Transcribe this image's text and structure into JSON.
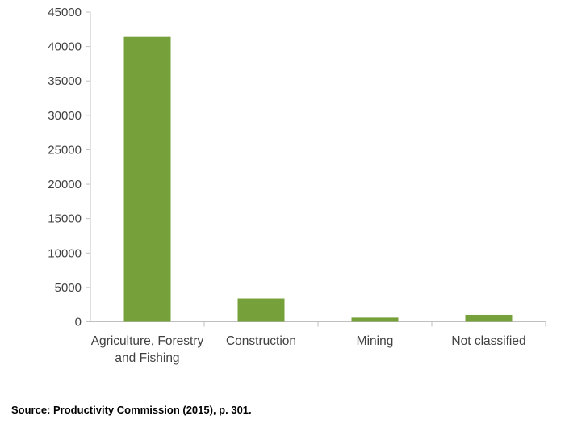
{
  "chart_data": {
    "type": "bar",
    "categories": [
      [
        "Agriculture, Forestry",
        "and Fishing"
      ],
      [
        "Construction"
      ],
      [
        "Mining"
      ],
      [
        "Not classified"
      ]
    ],
    "values": [
      41400,
      3400,
      600,
      1000
    ],
    "ylim": [
      0,
      45000
    ],
    "yticks": [
      0,
      5000,
      10000,
      15000,
      20000,
      25000,
      30000,
      35000,
      40000,
      45000
    ],
    "title": "",
    "xlabel": "",
    "ylabel": "",
    "grid": false,
    "legend": "none",
    "bar_color": "#76a03a",
    "axis_color": "#bfbfbf"
  },
  "source_note": "Source: Productivity Commission (2015), p. 301."
}
